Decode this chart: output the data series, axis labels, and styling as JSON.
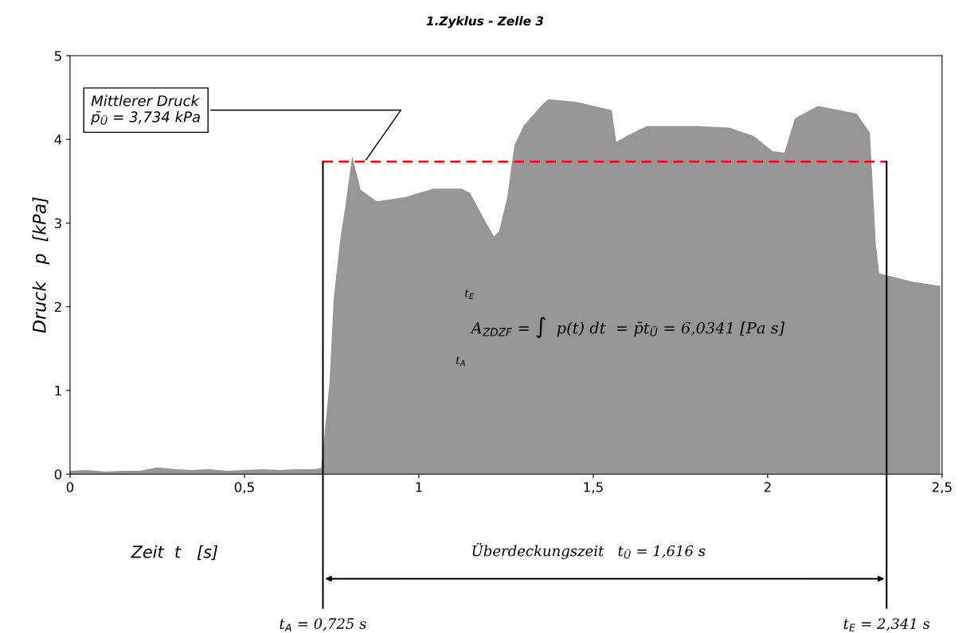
{
  "chart_data": {
    "type": "area",
    "title": "1.Zyklus - Zelle 3",
    "xlabel": "Zeit  t   [s]",
    "ylabel": "Druck   p  [kPa]",
    "x": [
      0.0,
      0.05,
      0.1,
      0.15,
      0.2,
      0.25,
      0.3,
      0.35,
      0.4,
      0.45,
      0.5,
      0.55,
      0.6,
      0.65,
      0.7,
      0.72,
      0.728,
      0.744,
      0.756,
      0.776,
      0.789,
      0.809,
      0.833,
      0.879,
      0.96,
      1.041,
      1.123,
      1.147,
      1.18,
      1.215,
      1.23,
      1.253,
      1.274,
      1.3,
      1.35,
      1.371,
      1.45,
      1.553,
      1.566,
      1.6,
      1.654,
      1.798,
      1.89,
      1.96,
      2.014,
      2.048,
      2.078,
      2.144,
      2.255,
      2.293,
      2.3,
      2.31,
      2.32,
      2.415,
      2.495
    ],
    "series": [
      {
        "color": "#969696",
        "values": [
          0.04,
          0.05,
          0.03,
          0.04,
          0.04,
          0.08,
          0.06,
          0.05,
          0.06,
          0.04,
          0.05,
          0.06,
          0.05,
          0.06,
          0.06,
          0.07,
          0.4,
          1.1,
          2.1,
          2.85,
          3.19,
          3.8,
          3.4,
          3.26,
          3.31,
          3.41,
          3.41,
          3.36,
          3.1,
          2.84,
          2.9,
          3.3,
          3.93,
          4.16,
          4.4,
          4.48,
          4.45,
          4.35,
          3.97,
          4.05,
          4.16,
          4.16,
          4.14,
          4.04,
          3.86,
          3.84,
          4.25,
          4.4,
          4.31,
          4.08,
          3.55,
          2.75,
          2.4,
          2.3,
          2.25
        ]
      }
    ],
    "xlim": [
      0,
      2.5
    ],
    "xticks": [
      0,
      {
        "value": 0.5,
        "label": "0,5"
      },
      1,
      {
        "value": 1.5,
        "label": "1,5"
      },
      2,
      {
        "value": 2.5,
        "label": "2,5"
      }
    ],
    "ylim": [
      0,
      5
    ],
    "yticks": [
      0,
      1,
      2,
      3,
      4,
      5
    ],
    "grid": false,
    "legend": false,
    "ref_lines": [
      {
        "axis": "y",
        "value": 3.734,
        "label": "Mittlerer Druck\np̄$_{Ü}$ = 3,734 kPa",
        "color": "#ff0000",
        "line_style": "dashed"
      },
      {
        "axis": "x",
        "value": 0.725,
        "label": "t$_{A}$ = 0,725 s",
        "color": "#000000",
        "line_style": "solid"
      },
      {
        "axis": "x",
        "value": 2.341,
        "label": "t$_{E}$ = 2,341 s",
        "color": "#000000",
        "line_style": "solid"
      }
    ],
    "annotations": [
      "A$_{ZDZF}$ = ∫  p(t) dt  = p̄t$_{Ü}$ = 6,0341 [Pa s]",
      "t$_{E}$",
      "t$_{A}$",
      "Überdeckungszeit   t$_{Ü}$ = 1,616 s"
    ]
  }
}
